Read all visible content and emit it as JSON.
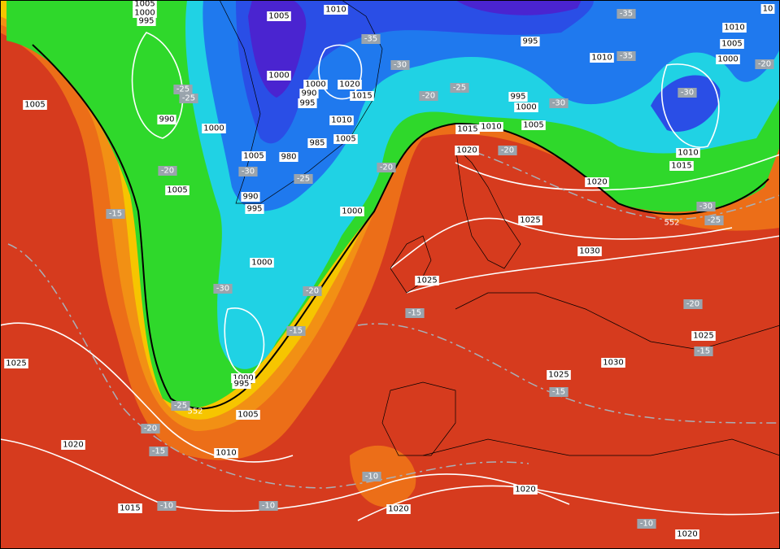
{
  "isobar_labels": [
    "1005",
    "1000",
    "995",
    "1005",
    "1010",
    "1005",
    "990",
    "1000",
    "1000",
    "1000",
    "990",
    "995",
    "1020",
    "1015",
    "1010",
    "985",
    "1005",
    "1005",
    "980",
    "990",
    "995",
    "1000",
    "1005",
    "1000",
    "1010",
    "1005",
    "1000",
    "995",
    "1010",
    "995",
    "1000",
    "1005",
    "1015",
    "1010",
    "1020",
    "1010",
    "1015",
    "1020",
    "1025",
    "1030",
    "1025",
    "1025",
    "1030",
    "1025",
    "1025",
    "1000",
    "995",
    "1005",
    "1020",
    "1010",
    "1015",
    "1020",
    "1020",
    "1020",
    "10"
  ],
  "temperature_labels": [
    "-35",
    "-30",
    "-25",
    "-20",
    "-25",
    "-25",
    "-30",
    "-25",
    "-20",
    "-15",
    "-20",
    "-30",
    "-35",
    "-35",
    "-30",
    "-20",
    "-20",
    "-30",
    "-25",
    "-30",
    "-20",
    "-15",
    "-15",
    "-20",
    "-15",
    "-15",
    "-25",
    "-20",
    "-15",
    "-10",
    "-10",
    "-10",
    "-10"
  ],
  "height_labels": [
    "552",
    "552"
  ]
}
